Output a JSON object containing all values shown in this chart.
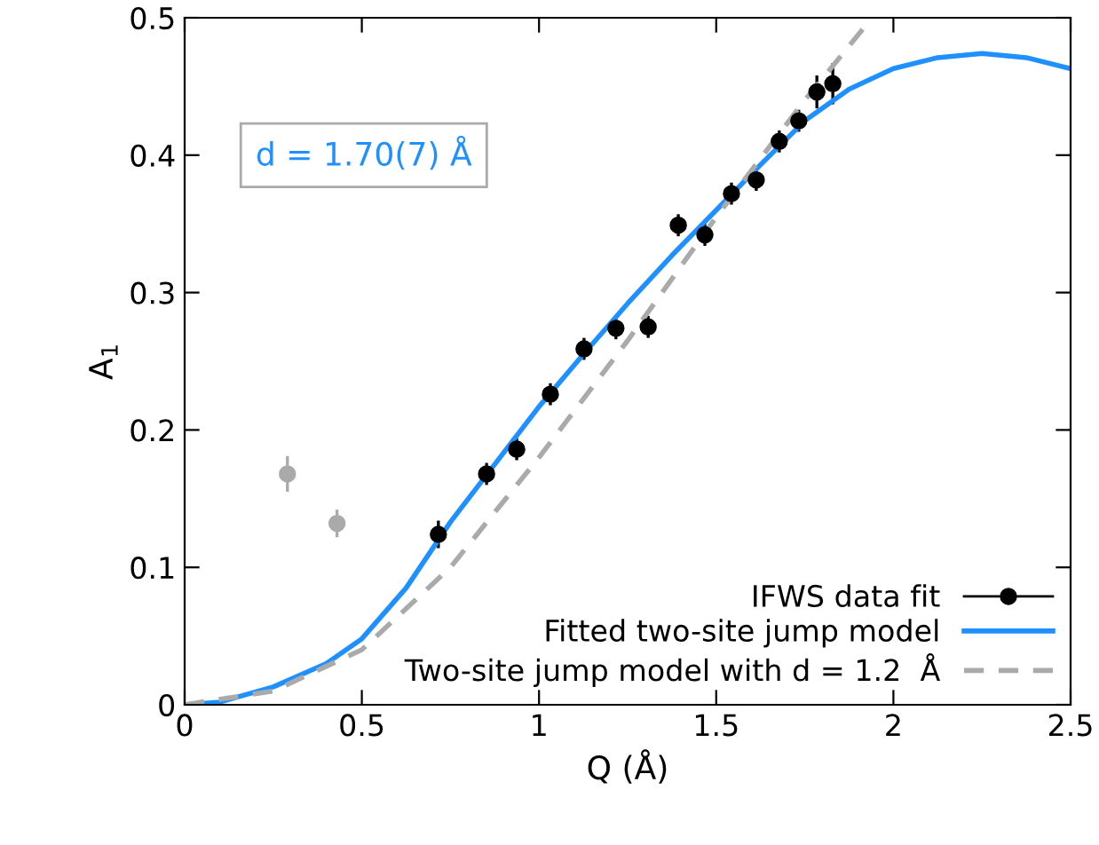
{
  "chart_data": {
    "type": "scatter",
    "xlabel": "Q (Å)",
    "ylabel": "A$_{1}$",
    "xlim": [
      0,
      2.5
    ],
    "ylim": [
      0,
      0.5
    ],
    "xticks": [
      0,
      0.5,
      1,
      1.5,
      2,
      2.5
    ],
    "yticks": [
      0,
      0.1,
      0.2,
      0.3,
      0.4,
      0.5
    ],
    "grid": false,
    "legend": "bottom right",
    "marker": "circle",
    "annotations": [
      "d = 1.70(7) Å"
    ],
    "series": [
      {
        "name": "IFWS data fit",
        "color": "#000000",
        "x": [
          0.716,
          0.852,
          0.937,
          1.032,
          1.127,
          1.217,
          1.308,
          1.393,
          1.468,
          1.543,
          1.613,
          1.678,
          1.733,
          1.784,
          1.829
        ],
        "values": [
          0.124,
          0.168,
          0.186,
          0.226,
          0.259,
          0.274,
          0.275,
          0.349,
          0.342,
          0.372,
          0.382,
          0.41,
          0.425,
          0.446,
          0.452
        ],
        "errors": [
          0.01,
          0.008,
          0.008,
          0.008,
          0.008,
          0.008,
          0.008,
          0.008,
          0.008,
          0.008,
          0.008,
          0.008,
          0.008,
          0.012,
          0.015
        ]
      },
      {
        "color": "#aaaaaa",
        "x": [
          0.29,
          0.43
        ],
        "values": [
          0.168,
          0.132
        ],
        "errors": [
          0.013,
          0.01
        ]
      },
      {
        "name": "Fitted two-site jump model",
        "type": "line",
        "color": "#1e90ff",
        "line_style": "solid",
        "marker": "none",
        "x": [
          0,
          0.1,
          0.25,
          0.4,
          0.5,
          0.625,
          0.75,
          0.875,
          1.0,
          1.125,
          1.25,
          1.375,
          1.5,
          1.625,
          1.75,
          1.875,
          2.0,
          2.125,
          2.25,
          2.375,
          2.5
        ],
        "values": [
          0,
          0.002,
          0.013,
          0.03,
          0.048,
          0.085,
          0.133,
          0.175,
          0.217,
          0.255,
          0.292,
          0.327,
          0.36,
          0.393,
          0.425,
          0.448,
          0.463,
          0.471,
          0.474,
          0.471,
          0.463
        ]
      },
      {
        "name": "Two-site jump model with d = 1.2  Å",
        "type": "line",
        "color": "#aaaaaa",
        "line_style": "dashed",
        "marker": "none",
        "x": [
          0,
          0.25,
          0.5,
          0.75,
          1.0,
          1.25,
          1.5,
          1.75,
          1.94
        ],
        "values": [
          0,
          0.01,
          0.04,
          0.1,
          0.18,
          0.265,
          0.355,
          0.44,
          0.5
        ]
      }
    ]
  }
}
